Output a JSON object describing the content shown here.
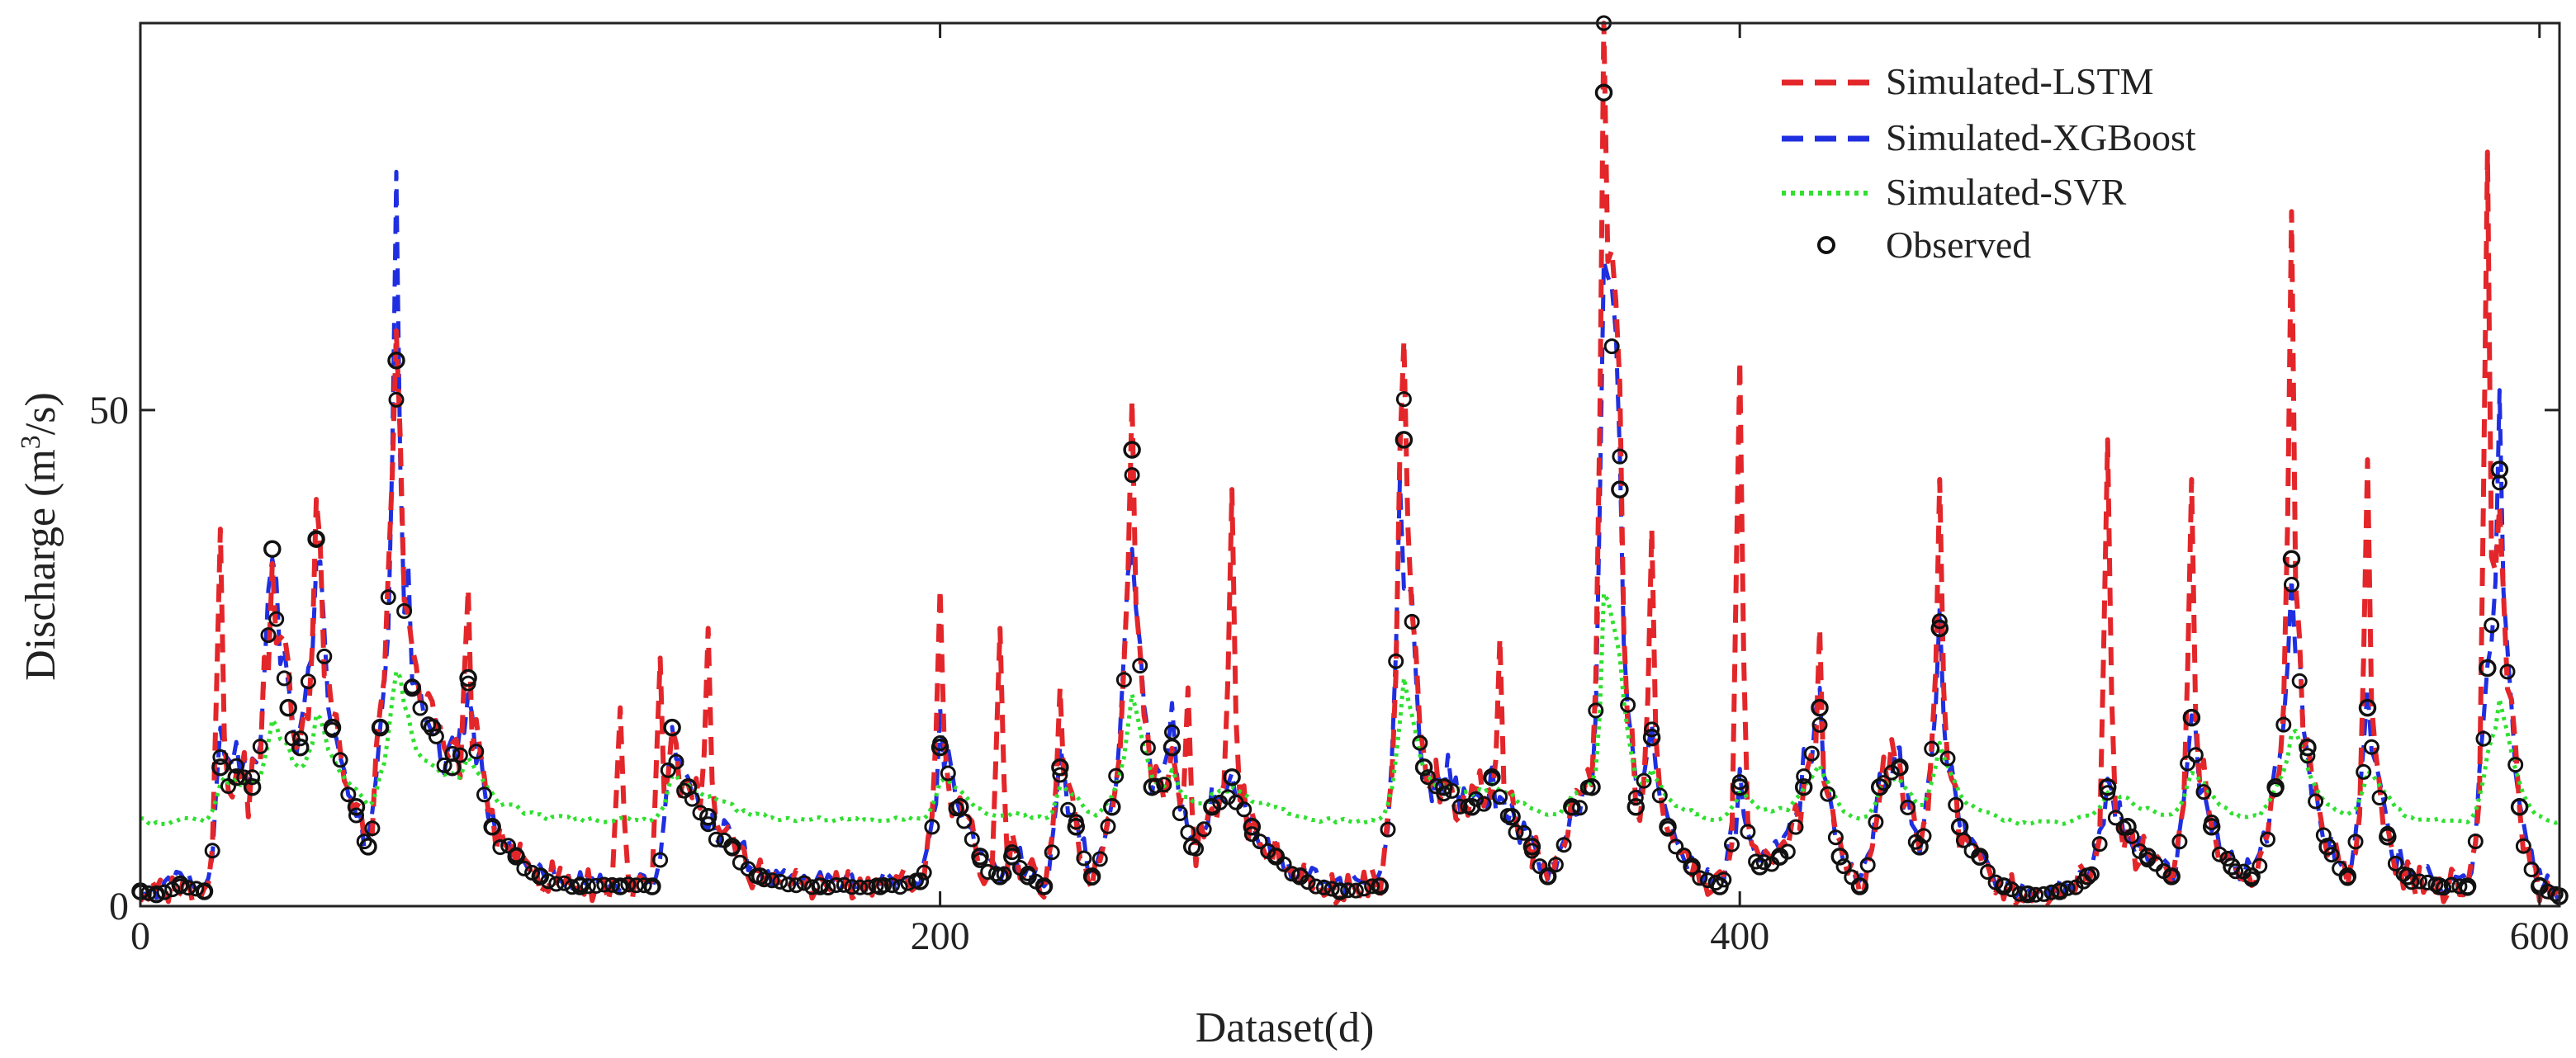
{
  "chart_data": {
    "type": "line",
    "title": "",
    "xlabel": "Dataset(d)",
    "ylabel_main": "Discharge (m",
    "ylabel_sup": "3",
    "ylabel_tail": "/s)",
    "xlim": [
      0,
      605
    ],
    "ylim": [
      0,
      89
    ],
    "xticks": [
      0,
      200,
      400,
      600
    ],
    "yticks": [
      0,
      50
    ],
    "grid": false,
    "legend_position": "top-right",
    "series": [
      {
        "name": "Simulated-LSTM",
        "color": "#e3262a",
        "style": "dashed"
      },
      {
        "name": "Simulated-XGBoost",
        "color": "#1f2fe0",
        "style": "dashed"
      },
      {
        "name": "Simulated-SVR",
        "color": "#2fe02f",
        "style": "dotted"
      },
      {
        "name": "Observed",
        "color": "#111111",
        "style": "marker-circle"
      }
    ],
    "peaks": [
      [
        0,
        1.5
      ],
      [
        4,
        1.2
      ],
      [
        10,
        2.2
      ],
      [
        16,
        1.5
      ],
      [
        20,
        14
      ],
      [
        24,
        13
      ],
      [
        28,
        12
      ],
      [
        33,
        36
      ],
      [
        37,
        20
      ],
      [
        40,
        16
      ],
      [
        44,
        37
      ],
      [
        48,
        18
      ],
      [
        54,
        10
      ],
      [
        57,
        6
      ],
      [
        60,
        18
      ],
      [
        64,
        55
      ],
      [
        68,
        22
      ],
      [
        73,
        18
      ],
      [
        78,
        14
      ],
      [
        82,
        23
      ],
      [
        88,
        8
      ],
      [
        94,
        5
      ],
      [
        100,
        3
      ],
      [
        110,
        2
      ],
      [
        120,
        2
      ],
      [
        128,
        2
      ],
      [
        133,
        18
      ],
      [
        137,
        12
      ],
      [
        142,
        9
      ],
      [
        148,
        6
      ],
      [
        155,
        3
      ],
      [
        170,
        2
      ],
      [
        185,
        2
      ],
      [
        195,
        2.5
      ],
      [
        200,
        16
      ],
      [
        205,
        10
      ],
      [
        210,
        5
      ],
      [
        215,
        3
      ],
      [
        218,
        5
      ],
      [
        222,
        3
      ],
      [
        226,
        2
      ],
      [
        230,
        14
      ],
      [
        234,
        8
      ],
      [
        238,
        3
      ],
      [
        243,
        10
      ],
      [
        248,
        46
      ],
      [
        253,
        12
      ],
      [
        258,
        16
      ],
      [
        263,
        6
      ],
      [
        268,
        10
      ],
      [
        273,
        13
      ],
      [
        278,
        8
      ],
      [
        284,
        5
      ],
      [
        290,
        3
      ],
      [
        300,
        1.5
      ],
      [
        310,
        2
      ],
      [
        316,
        47
      ],
      [
        321,
        14
      ],
      [
        326,
        12
      ],
      [
        333,
        10
      ],
      [
        338,
        13
      ],
      [
        343,
        9
      ],
      [
        348,
        6
      ],
      [
        352,
        3
      ],
      [
        358,
        10
      ],
      [
        363,
        12
      ],
      [
        366,
        82
      ],
      [
        370,
        42
      ],
      [
        374,
        10
      ],
      [
        378,
        17
      ],
      [
        382,
        8
      ],
      [
        388,
        4
      ],
      [
        395,
        2
      ],
      [
        400,
        12
      ],
      [
        405,
        4
      ],
      [
        410,
        5
      ],
      [
        416,
        12
      ],
      [
        420,
        20
      ],
      [
        425,
        5
      ],
      [
        430,
        2
      ],
      [
        435,
        12
      ],
      [
        440,
        14
      ],
      [
        445,
        6
      ],
      [
        450,
        28
      ],
      [
        455,
        8
      ],
      [
        460,
        5
      ],
      [
        466,
        2
      ],
      [
        472,
        1.2
      ],
      [
        480,
        1.5
      ],
      [
        487,
        3
      ],
      [
        492,
        12
      ],
      [
        497,
        8
      ],
      [
        502,
        5
      ],
      [
        508,
        3
      ],
      [
        513,
        19
      ],
      [
        518,
        8
      ],
      [
        523,
        4
      ],
      [
        528,
        3
      ],
      [
        534,
        12
      ],
      [
        538,
        35
      ],
      [
        542,
        16
      ],
      [
        547,
        6
      ],
      [
        552,
        3
      ],
      [
        557,
        20
      ],
      [
        562,
        7
      ],
      [
        567,
        3
      ],
      [
        575,
        2
      ],
      [
        582,
        2
      ],
      [
        587,
        24
      ],
      [
        590,
        44
      ],
      [
        595,
        10
      ],
      [
        600,
        2
      ],
      [
        605,
        1
      ]
    ],
    "lstm_spikes": [
      [
        20,
        38
      ],
      [
        44,
        41
      ],
      [
        60,
        20
      ],
      [
        64,
        58
      ],
      [
        82,
        32
      ],
      [
        120,
        20
      ],
      [
        130,
        25
      ],
      [
        142,
        28
      ],
      [
        200,
        32
      ],
      [
        215,
        28
      ],
      [
        230,
        22
      ],
      [
        248,
        51
      ],
      [
        262,
        22
      ],
      [
        273,
        42
      ],
      [
        316,
        57
      ],
      [
        340,
        27
      ],
      [
        366,
        89
      ],
      [
        378,
        38
      ],
      [
        400,
        55
      ],
      [
        420,
        28
      ],
      [
        450,
        43
      ],
      [
        492,
        47
      ],
      [
        513,
        43
      ],
      [
        538,
        70
      ],
      [
        557,
        45
      ],
      [
        587,
        76
      ]
    ],
    "xgb_spikes": [
      [
        33,
        35
      ],
      [
        64,
        74
      ],
      [
        200,
        20
      ],
      [
        248,
        36
      ],
      [
        316,
        32
      ],
      [
        366,
        65
      ],
      [
        420,
        22
      ],
      [
        450,
        30
      ],
      [
        538,
        33
      ],
      [
        590,
        52
      ]
    ],
    "svr_baseline": 8
  }
}
